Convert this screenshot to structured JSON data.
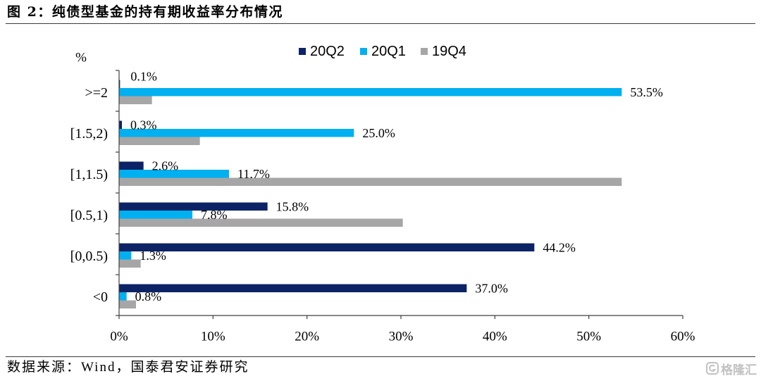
{
  "figure": {
    "title": "图 2：纯债型基金的持有期收益率分布情况",
    "source": "数据来源：Wind，国泰君安证券研究",
    "watermark": "格隆汇"
  },
  "chart_data": {
    "type": "bar",
    "orientation": "horizontal",
    "ylabel": "%",
    "categories": [
      ">=2",
      "[1.5,2)",
      "[1,1.5)",
      "[0.5,1)",
      "[0,0.5)",
      "<0"
    ],
    "series": [
      {
        "name": "20Q2",
        "color": "#0c2366",
        "values": [
          0.1,
          0.3,
          2.6,
          15.8,
          44.2,
          37.0
        ],
        "labels": [
          "0.1%",
          "0.3%",
          "2.6%",
          "15.8%",
          "44.2%",
          "37.0%"
        ]
      },
      {
        "name": "20Q1",
        "color": "#00b0f0",
        "values": [
          53.5,
          25.0,
          11.7,
          7.8,
          1.3,
          0.8
        ],
        "labels": [
          "53.5%",
          "25.0%",
          "11.7%",
          "7.8%",
          "1.3%",
          "0.8%"
        ]
      },
      {
        "name": "19Q4",
        "color": "#a6a6a6",
        "values": [
          3.5,
          8.6,
          53.5,
          30.2,
          2.3,
          1.8
        ]
      }
    ],
    "xlim": [
      0,
      60
    ],
    "xticks": [
      0,
      10,
      20,
      30,
      40,
      50,
      60
    ],
    "xtick_labels": [
      "0%",
      "10%",
      "20%",
      "30%",
      "40%",
      "50%",
      "60%"
    ],
    "legend": "top-center",
    "grid": false
  }
}
